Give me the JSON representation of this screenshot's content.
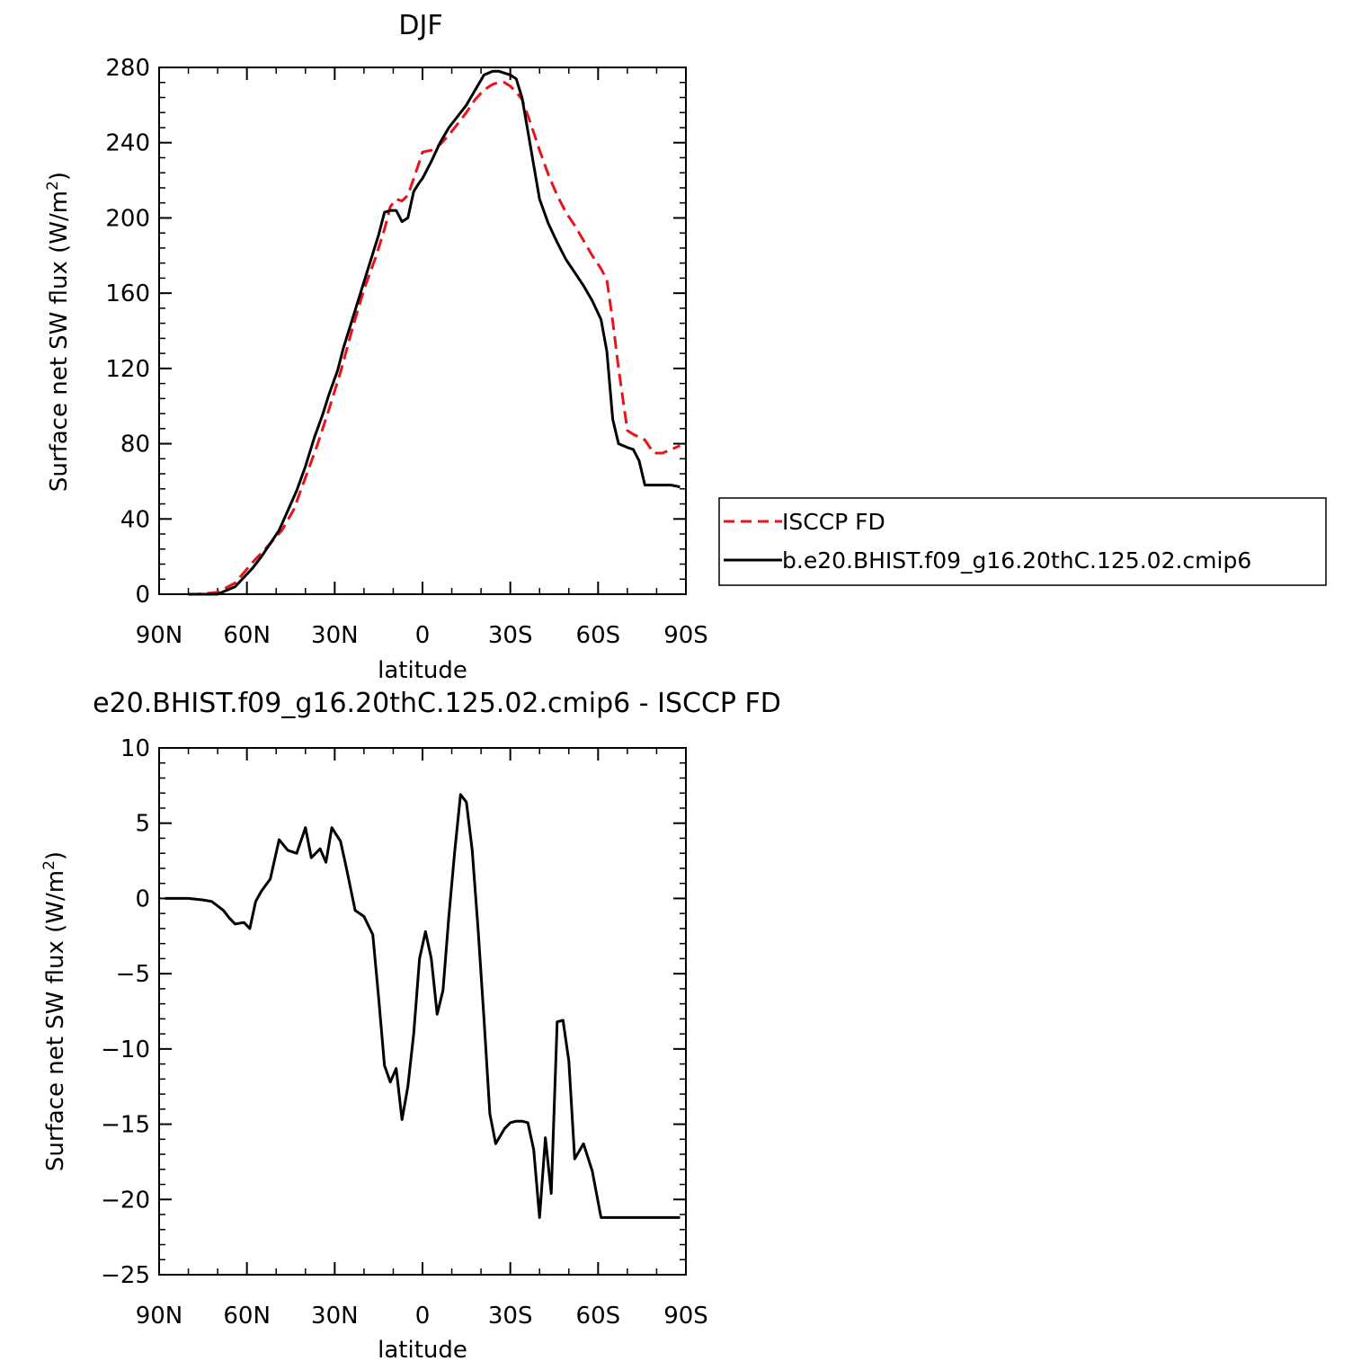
{
  "chart_data": [
    {
      "type": "line",
      "title": "DJF",
      "xlabel": "latitude",
      "ylabel_main": "Surface net SW flux (W/m",
      "ylabel_sup": "2",
      "ylabel_tail": ")",
      "xlim": [
        90,
        -90
      ],
      "ylim": [
        0,
        280
      ],
      "yticks": [
        0,
        40,
        80,
        120,
        160,
        200,
        240,
        280
      ],
      "xticks": [
        {
          "value": 90,
          "label": "90N"
        },
        {
          "value": 60,
          "label": "60N"
        },
        {
          "value": 30,
          "label": "30N"
        },
        {
          "value": 0,
          "label": "0"
        },
        {
          "value": -30,
          "label": "30S"
        },
        {
          "value": -60,
          "label": "60S"
        },
        {
          "value": -90,
          "label": "90S"
        }
      ],
      "legend_position": "right",
      "series": [
        {
          "name": "ISCCP FD",
          "color": "#e8141b",
          "dash": "dashed",
          "x": [
            80,
            77,
            70,
            64,
            58,
            52,
            48,
            44,
            40,
            36,
            32,
            28,
            24,
            20,
            16,
            13,
            11,
            9,
            7,
            5,
            3,
            1,
            0,
            -3,
            -6,
            -9,
            -12,
            -15,
            -18,
            -21,
            -24,
            -26,
            -28,
            -30,
            -32,
            -34,
            -37,
            -40,
            -43,
            -46,
            -49,
            -52,
            -55,
            -58,
            -61,
            -63,
            -65,
            -67,
            -70,
            -72,
            -76,
            -79,
            -82,
            -85,
            -88
          ],
          "values": [
            0,
            0,
            1,
            6,
            17,
            27,
            34,
            45,
            62,
            79,
            98,
            118,
            141,
            162,
            179,
            194,
            206,
            210,
            209,
            212,
            221,
            230,
            235,
            236,
            239,
            244,
            250,
            256,
            263,
            268,
            271,
            272,
            272,
            270,
            267,
            263,
            250,
            236,
            223,
            212,
            203,
            196,
            188,
            180,
            173,
            167,
            145,
            120,
            87,
            85,
            82,
            75,
            75,
            77,
            79
          ]
        },
        {
          "name": "b.e20.BHIST.f09_g16.20thC.125.02.cmip6",
          "color": "#000000",
          "dash": "solid",
          "x": [
            80,
            75,
            70,
            67,
            64,
            61,
            58,
            55,
            52,
            49,
            47,
            45,
            43,
            40,
            37,
            34,
            32,
            29,
            27,
            24,
            21,
            18,
            15,
            13,
            11,
            9,
            7,
            5,
            3,
            1,
            0,
            -3,
            -6,
            -9,
            -12,
            -15,
            -18,
            -21,
            -24,
            -26,
            -28,
            -30,
            -32,
            -34,
            -37,
            -40,
            -43,
            -46,
            -49,
            -52,
            -55,
            -58,
            -61,
            -63,
            -65,
            -67,
            -70,
            -72,
            -74,
            -76,
            -79,
            -82,
            -85,
            -88
          ],
          "values": [
            0,
            0,
            0,
            2,
            4,
            9,
            14,
            20,
            27,
            34,
            41,
            48,
            55,
            68,
            83,
            96,
            106,
            119,
            131,
            146,
            161,
            176,
            191,
            203,
            204,
            204,
            198,
            200,
            214,
            219,
            221,
            230,
            240,
            248,
            254,
            260,
            268,
            276,
            278,
            278,
            277,
            276,
            274,
            264,
            237,
            210,
            197,
            187,
            178,
            171,
            164,
            156,
            146,
            129,
            93,
            80,
            78,
            77,
            71,
            58,
            58,
            58,
            58,
            57
          ]
        }
      ]
    },
    {
      "type": "line",
      "title": "e20.BHIST.f09_g16.20thC.125.02.cmip6 - ISCCP FD",
      "xlabel": "latitude",
      "ylabel_main": "Surface net SW flux (W/m",
      "ylabel_sup": "2",
      "ylabel_tail": ")",
      "xlim": [
        90,
        -90
      ],
      "ylim": [
        -25,
        10
      ],
      "yticks": [
        -25,
        -20,
        -15,
        -10,
        -5,
        0,
        5,
        10
      ],
      "xticks": [
        {
          "value": 90,
          "label": "90N"
        },
        {
          "value": 60,
          "label": "60N"
        },
        {
          "value": 30,
          "label": "30N"
        },
        {
          "value": 0,
          "label": "0"
        },
        {
          "value": -30,
          "label": "30S"
        },
        {
          "value": -60,
          "label": "60S"
        },
        {
          "value": -90,
          "label": "90S"
        }
      ],
      "series": [
        {
          "color": "#000000",
          "dash": "solid",
          "x": [
            88,
            80,
            75,
            72,
            70,
            68,
            66,
            64,
            61,
            59,
            57,
            55,
            52,
            49,
            46,
            43,
            40,
            38,
            35,
            33,
            31,
            28,
            26,
            23,
            20,
            17,
            15,
            13,
            11,
            9,
            7,
            5,
            3,
            1,
            -1,
            -3,
            -5,
            -7,
            -9,
            -11,
            -13,
            -15,
            -17,
            -19,
            -21,
            -23,
            -25,
            -28,
            -30,
            -32,
            -34,
            -36,
            -38,
            -40,
            -42,
            -44,
            -46,
            -48,
            -50,
            -52,
            -55,
            -58,
            -61,
            -63,
            -65,
            -67,
            -69,
            -71,
            -73,
            -75,
            -78,
            -80,
            -82,
            -84,
            -86,
            -88
          ],
          "values": [
            0,
            0,
            -0.1,
            -0.2,
            -0.5,
            -0.8,
            -1.3,
            -1.7,
            -1.6,
            -2,
            -0.2,
            0.5,
            1.3,
            3.9,
            3.2,
            3.0,
            4.7,
            2.7,
            3.3,
            2.4,
            4.7,
            3.8,
            2.0,
            -0.8,
            -1.2,
            -2.4,
            -6.6,
            -11.1,
            -12.2,
            -11.3,
            -14.7,
            -12.5,
            -9.0,
            -4.0,
            -2.2,
            -4.0,
            -7.7,
            -6.1,
            -1.2,
            3.1,
            6.9,
            6.4,
            3.2,
            -2.1,
            -8.0,
            -14.3,
            -16.3,
            -15.3,
            -14.9,
            -14.8,
            -14.8,
            -14.9,
            -16.7,
            -21.2,
            -15.9,
            -19.6,
            -8.2,
            -8.1,
            -10.8,
            -17.3,
            -16.3,
            -18.1,
            -21.2,
            -21.2,
            -21.2,
            -21.2,
            -21.2,
            -21.2,
            -21.2,
            -21.2,
            -21.2,
            -21.2,
            -21.2,
            -21.2,
            -21.2,
            -21.2
          ]
        }
      ]
    }
  ]
}
